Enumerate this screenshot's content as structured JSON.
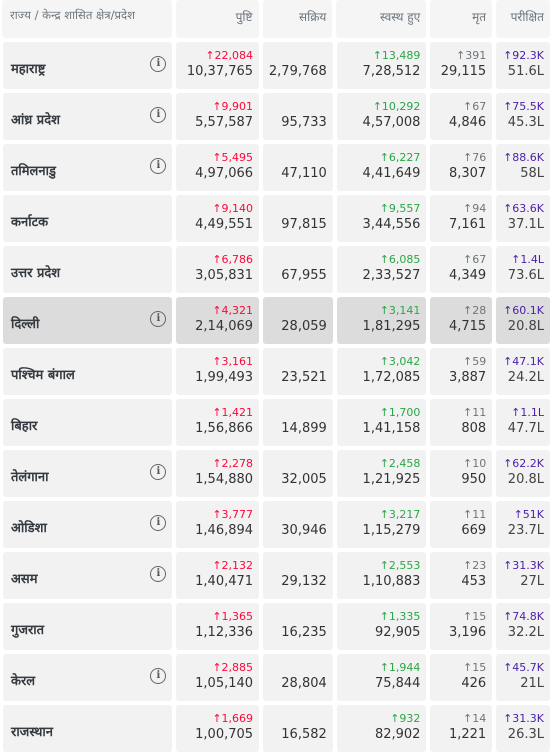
{
  "headers": {
    "state": "राज्य / केन्द्र शासित क्षेत्र/प्रदेश",
    "confirmed": "पुष्टि",
    "active": "सक्रिय",
    "recovered": "स्वस्थ हुए",
    "deceased": "मृत",
    "tested": "परीक्षित"
  },
  "info_icon": "i",
  "rows": [
    {
      "state": "महाराष्ट्र",
      "info": true,
      "conf_delta": "↑22,084",
      "confirmed": "10,37,765",
      "active": "2,79,768",
      "rec_delta": "↑13,489",
      "recovered": "7,28,512",
      "dec_delta": "↑391",
      "deceased": "29,115",
      "test_delta": "↑92.3K",
      "tested": "51.6L",
      "hl": false
    },
    {
      "state": "आंध्र प्रदेश",
      "info": true,
      "conf_delta": "↑9,901",
      "confirmed": "5,57,587",
      "active": "95,733",
      "rec_delta": "↑10,292",
      "recovered": "4,57,008",
      "dec_delta": "↑67",
      "deceased": "4,846",
      "test_delta": "↑75.5K",
      "tested": "45.3L",
      "hl": false
    },
    {
      "state": "तमिलनाडु",
      "info": true,
      "conf_delta": "↑5,495",
      "confirmed": "4,97,066",
      "active": "47,110",
      "rec_delta": "↑6,227",
      "recovered": "4,41,649",
      "dec_delta": "↑76",
      "deceased": "8,307",
      "test_delta": "↑88.6K",
      "tested": "58L",
      "hl": false
    },
    {
      "state": "कर्नाटक",
      "info": false,
      "conf_delta": "↑9,140",
      "confirmed": "4,49,551",
      "active": "97,815",
      "rec_delta": "↑9,557",
      "recovered": "3,44,556",
      "dec_delta": "↑94",
      "deceased": "7,161",
      "test_delta": "↑63.6K",
      "tested": "37.1L",
      "hl": false
    },
    {
      "state": "उत्तर प्रदेश",
      "info": false,
      "conf_delta": "↑6,786",
      "confirmed": "3,05,831",
      "active": "67,955",
      "rec_delta": "↑6,085",
      "recovered": "2,33,527",
      "dec_delta": "↑67",
      "deceased": "4,349",
      "test_delta": "↑1.4L",
      "tested": "73.6L",
      "hl": false
    },
    {
      "state": "दिल्ली",
      "info": true,
      "conf_delta": "↑4,321",
      "confirmed": "2,14,069",
      "active": "28,059",
      "rec_delta": "↑3,141",
      "recovered": "1,81,295",
      "dec_delta": "↑28",
      "deceased": "4,715",
      "test_delta": "↑60.1K",
      "tested": "20.8L",
      "hl": true
    },
    {
      "state": "पश्चिम बंगाल",
      "info": false,
      "conf_delta": "↑3,161",
      "confirmed": "1,99,493",
      "active": "23,521",
      "rec_delta": "↑3,042",
      "recovered": "1,72,085",
      "dec_delta": "↑59",
      "deceased": "3,887",
      "test_delta": "↑47.1K",
      "tested": "24.2L",
      "hl": false
    },
    {
      "state": "बिहार",
      "info": false,
      "conf_delta": "↑1,421",
      "confirmed": "1,56,866",
      "active": "14,899",
      "rec_delta": "↑1,700",
      "recovered": "1,41,158",
      "dec_delta": "↑11",
      "deceased": "808",
      "test_delta": "↑1.1L",
      "tested": "47.7L",
      "hl": false
    },
    {
      "state": "तेलंगाना",
      "info": true,
      "conf_delta": "↑2,278",
      "confirmed": "1,54,880",
      "active": "32,005",
      "rec_delta": "↑2,458",
      "recovered": "1,21,925",
      "dec_delta": "↑10",
      "deceased": "950",
      "test_delta": "↑62.2K",
      "tested": "20.8L",
      "hl": false
    },
    {
      "state": "ओडिशा",
      "info": true,
      "conf_delta": "↑3,777",
      "confirmed": "1,46,894",
      "active": "30,946",
      "rec_delta": "↑3,217",
      "recovered": "1,15,279",
      "dec_delta": "↑11",
      "deceased": "669",
      "test_delta": "↑51K",
      "tested": "23.7L",
      "hl": false
    },
    {
      "state": "असम",
      "info": true,
      "conf_delta": "↑2,132",
      "confirmed": "1,40,471",
      "active": "29,132",
      "rec_delta": "↑2,553",
      "recovered": "1,10,883",
      "dec_delta": "↑23",
      "deceased": "453",
      "test_delta": "↑31.3K",
      "tested": "27L",
      "hl": false
    },
    {
      "state": "गुजरात",
      "info": false,
      "conf_delta": "↑1,365",
      "confirmed": "1,12,336",
      "active": "16,235",
      "rec_delta": "↑1,335",
      "recovered": "92,905",
      "dec_delta": "↑15",
      "deceased": "3,196",
      "test_delta": "↑74.8K",
      "tested": "32.2L",
      "hl": false
    },
    {
      "state": "केरल",
      "info": true,
      "conf_delta": "↑2,885",
      "confirmed": "1,05,140",
      "active": "28,804",
      "rec_delta": "↑1,944",
      "recovered": "75,844",
      "dec_delta": "↑15",
      "deceased": "426",
      "test_delta": "↑45.7K",
      "tested": "21L",
      "hl": false
    },
    {
      "state": "राजस्थान",
      "info": false,
      "conf_delta": "↑1,669",
      "confirmed": "1,00,705",
      "active": "16,582",
      "rec_delta": "↑932",
      "recovered": "82,902",
      "dec_delta": "↑14",
      "deceased": "1,221",
      "test_delta": "↑31.3K",
      "tested": "26.3L",
      "hl": false
    }
  ],
  "colors": {
    "confirmed_delta": "#ff073a",
    "recovered_delta": "#28a745",
    "deceased_delta": "#6c757d",
    "tested_delta": "#4b1eaa"
  }
}
